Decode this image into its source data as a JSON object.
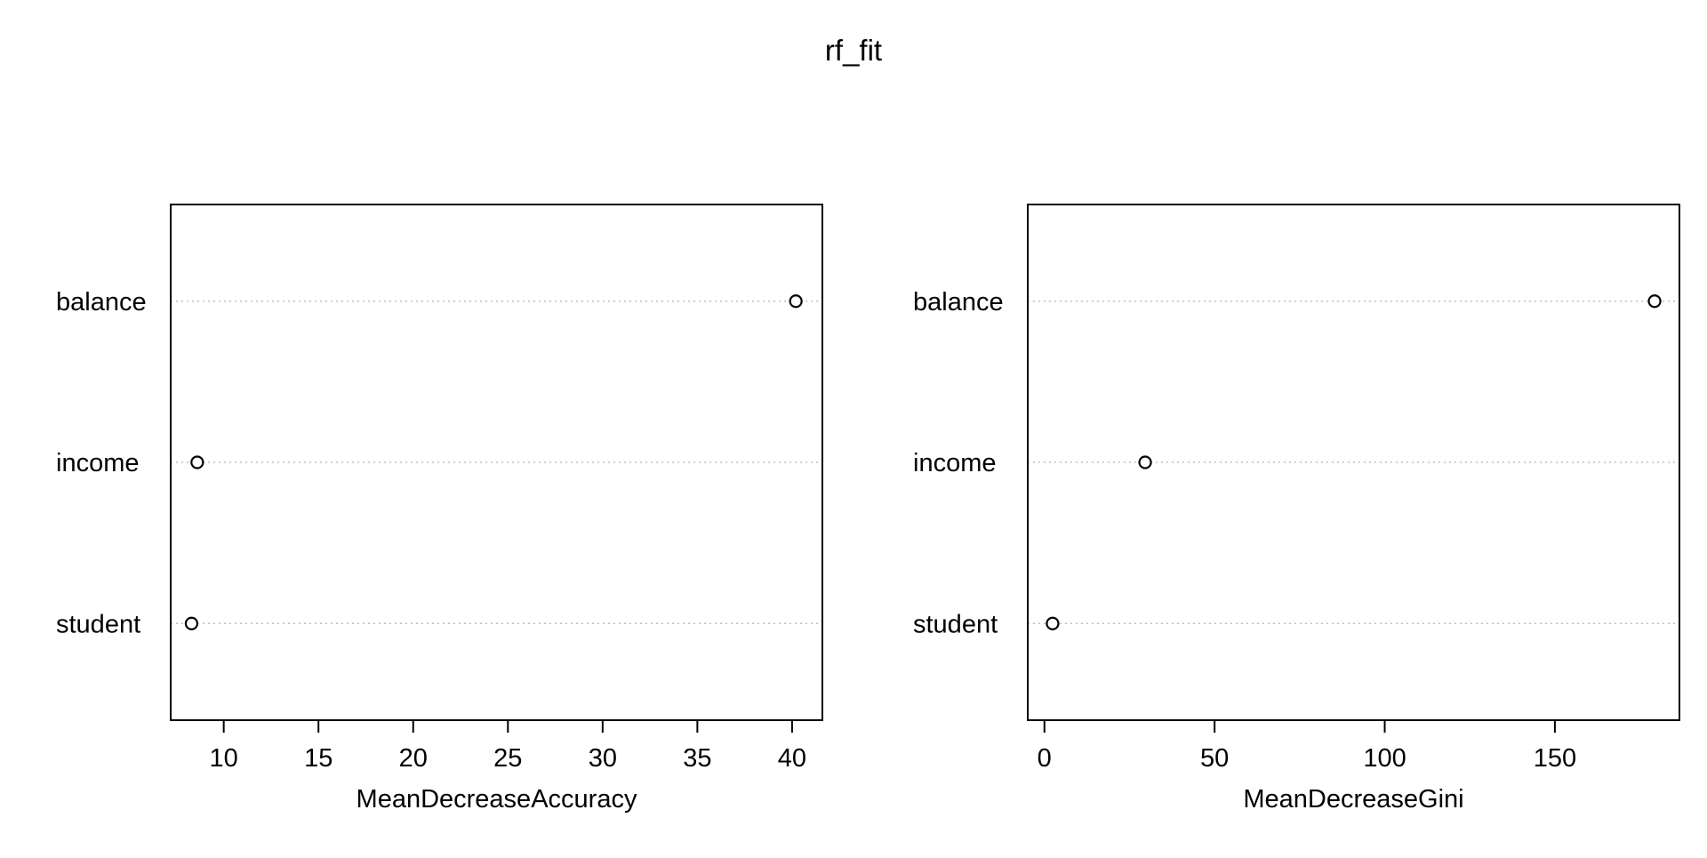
{
  "title": "rf_fit",
  "colors": {
    "axis": "#000000",
    "grid": "#bebebe",
    "point": "#000000",
    "background": "#ffffff"
  },
  "chart_data": [
    {
      "type": "scatter",
      "subtype": "dotchart",
      "xlabel": "MeanDecreaseAccuracy",
      "ylabel": "",
      "categories": [
        "student",
        "income",
        "balance"
      ],
      "values": [
        8.3,
        8.6,
        40.2
      ],
      "xlim": [
        7.2,
        41.6
      ],
      "xticks": [
        10,
        15,
        20,
        25,
        30,
        35,
        40
      ],
      "grid": "dotted horizontal lines at each category"
    },
    {
      "type": "scatter",
      "subtype": "dotchart",
      "xlabel": "MeanDecreaseGini",
      "ylabel": "",
      "categories": [
        "student",
        "income",
        "balance"
      ],
      "values": [
        2.4,
        29.6,
        179.3
      ],
      "xlim": [
        -4.9,
        186.6
      ],
      "xticks": [
        0,
        50,
        100,
        150
      ],
      "grid": "dotted horizontal lines at each category"
    }
  ]
}
